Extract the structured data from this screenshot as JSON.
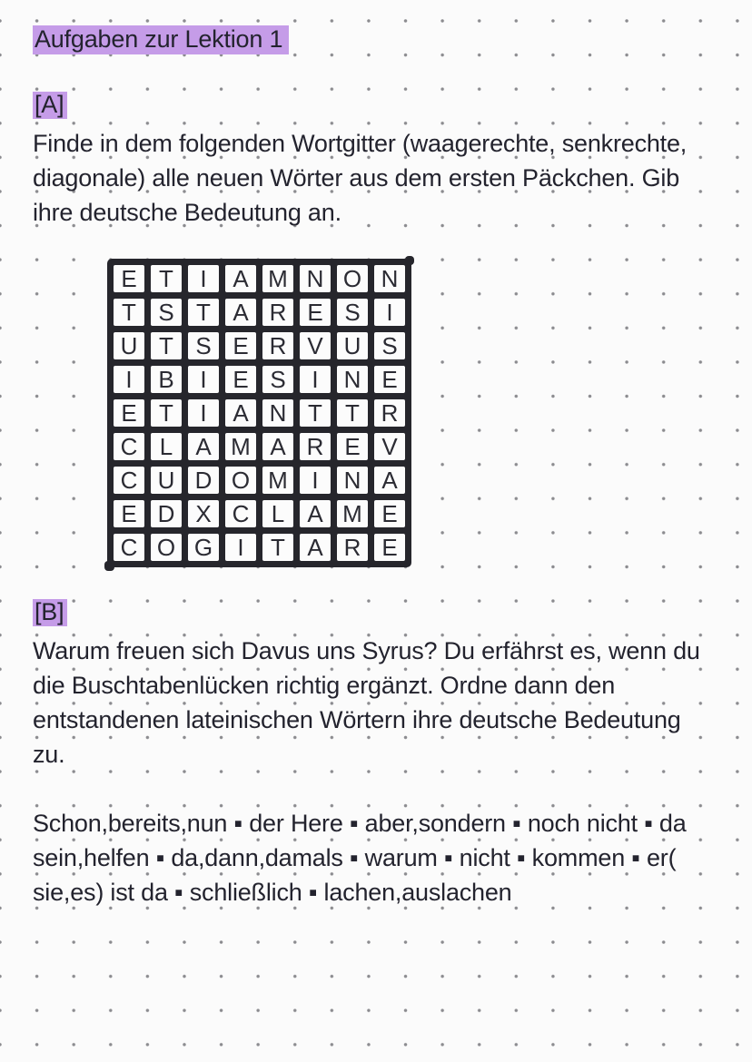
{
  "colors": {
    "highlight": "#c59ce8",
    "text": "#23232e",
    "grid_ink": "#26262c",
    "dot": "#8b8b8f",
    "background": "#fbfbfb"
  },
  "title": "Aufgaben zur Lektion 1",
  "section_a": {
    "label": "[A]",
    "instructions": [
      "Finde in dem folgenden Wortgitter (waagerechte, senkrechte,",
      "diagonale) alle neuen Wörter aus dem ersten Päckchen. Gib",
      "ihre deutsche Bedeutung an."
    ],
    "word_grid_rows": [
      "ETIAMNON",
      "TSTARESI",
      "UTSERVUS",
      "IBIESINE",
      "ETIANTTR",
      "CLAMAREV",
      "CUDOMINA",
      "EDXCLAME",
      "COGITARE"
    ]
  },
  "section_b": {
    "label": "[B]",
    "instructions": [
      "Warum freuen sich Davus uns Syrus? Du erfährst es, wenn du",
      "die Buschtabenlücken richtig ergänzt. Ordne dann den",
      "entstandenen lateinischen Wörtern ihre deutsche Bedeutung",
      "zu."
    ],
    "word_bank": [
      "Schon,bereits,nun ▪ der Here ▪ aber,sondern ▪ noch nicht ▪ da",
      "sein,helfen ▪ da,dann,damals ▪ warum ▪ nicht ▪ kommen ▪ er(",
      "sie,es) ist da ▪ schließlich ▪ lachen,auslachen"
    ]
  }
}
